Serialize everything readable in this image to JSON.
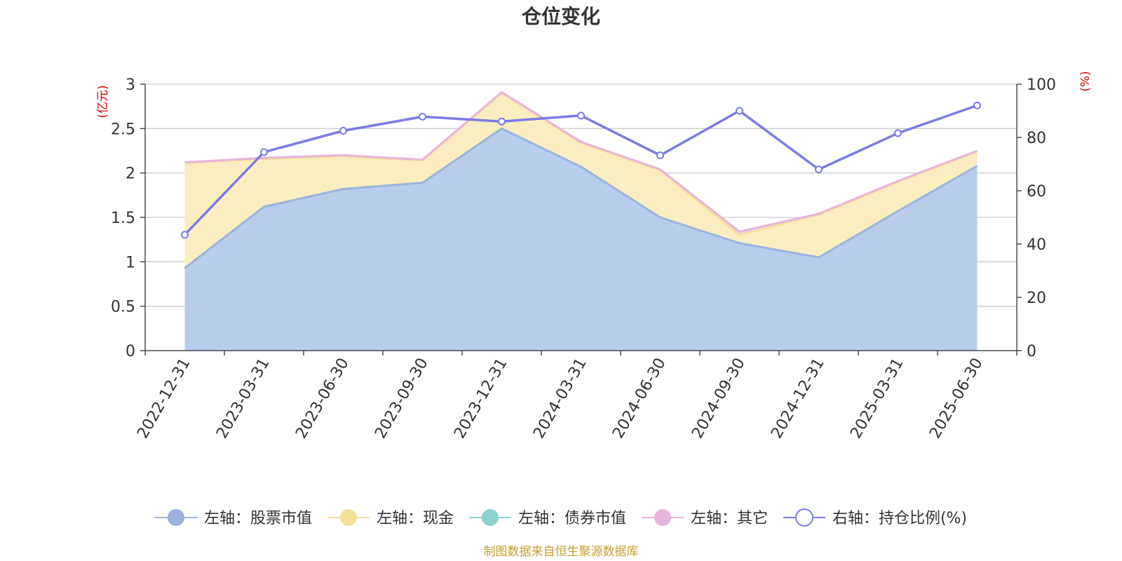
{
  "chart_data": {
    "type": "area",
    "title": "仓位变化",
    "left_axis_unit": "(亿元)",
    "right_axis_unit": "(%)",
    "categories": [
      "2022-12-31",
      "2023-03-31",
      "2023-06-30",
      "2023-09-30",
      "2023-12-31",
      "2024-03-31",
      "2024-06-30",
      "2024-09-30",
      "2024-12-31",
      "2025-03-31",
      "2025-06-30"
    ],
    "left_axis": {
      "min": 0,
      "max": 3,
      "ticks": [
        "0",
        "0.5",
        "1",
        "1.5",
        "2",
        "2.5",
        "3"
      ]
    },
    "right_axis": {
      "min": 0,
      "max": 100,
      "ticks": [
        "0",
        "20",
        "40",
        "60",
        "80",
        "100"
      ]
    },
    "series": [
      {
        "name": "左轴：股票市值",
        "axis": "left",
        "type": "area",
        "stacked": true,
        "color": "#9ab4de",
        "fill": "#b8cceb",
        "values": [
          0.93,
          1.62,
          1.82,
          1.89,
          2.5,
          2.07,
          1.5,
          1.21,
          1.05,
          1.57,
          2.08
        ]
      },
      {
        "name": "左轴：现金",
        "axis": "left",
        "type": "area",
        "stacked": true,
        "color": "#f5e09a",
        "fill": "#faeec0",
        "values": [
          1.18,
          0.54,
          0.37,
          0.25,
          0.4,
          0.27,
          0.53,
          0.09,
          0.48,
          0.33,
          0.16
        ]
      },
      {
        "name": "左轴：债券市值",
        "axis": "left",
        "type": "area",
        "stacked": true,
        "color": "#8fd0d0",
        "fill": "#bfe6e6",
        "values": [
          0,
          0,
          0,
          0,
          0,
          0,
          0,
          0,
          0,
          0,
          0
        ]
      },
      {
        "name": "左轴：其它",
        "axis": "left",
        "type": "area",
        "stacked": true,
        "color": "#e8b4dc",
        "fill": "#f2d2ea",
        "values": [
          0.01,
          0.01,
          0.01,
          0.01,
          0.01,
          0.01,
          0.01,
          0.04,
          0.01,
          0.01,
          0.01
        ]
      },
      {
        "name": "右轴：持仓比例(%)",
        "axis": "right",
        "type": "line",
        "color": "#7b7bea",
        "values": [
          43.5,
          74.5,
          82.5,
          87.8,
          86.0,
          88.2,
          73.3,
          90.0,
          68.0,
          81.6,
          92.0
        ]
      }
    ],
    "grid": true,
    "legend_position": "bottom",
    "source": "制图数据来自恒生聚源数据库"
  }
}
